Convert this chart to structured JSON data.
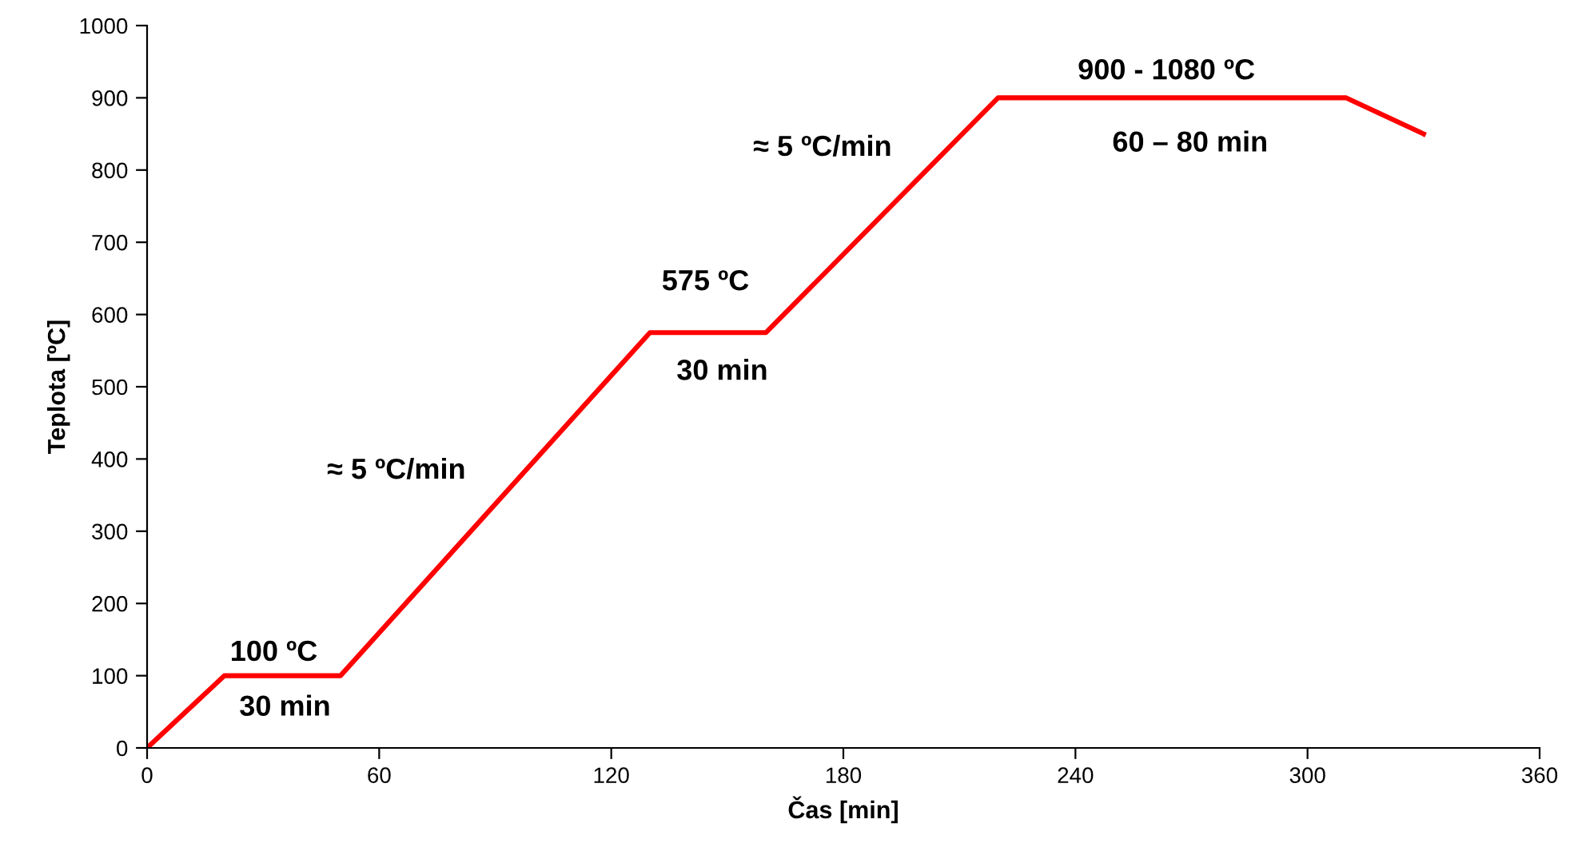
{
  "chart_data": {
    "type": "line",
    "xlabel": "Čas [min]",
    "ylabel": "Teplota [ºC]",
    "x": [
      0,
      20,
      50,
      130,
      160,
      220,
      310,
      330
    ],
    "series": [
      {
        "color": "#ff0000",
        "values": [
          0,
          100,
          100,
          575,
          575,
          900,
          900,
          850
        ]
      }
    ],
    "xlim": [
      0,
      360
    ],
    "xticks": [
      0,
      60,
      120,
      180,
      240,
      300,
      360
    ],
    "ylim": [
      0,
      1000
    ],
    "yticks": [
      0,
      100,
      200,
      300,
      400,
      500,
      600,
      700,
      800,
      900,
      1000
    ],
    "grid": false,
    "marker": "none",
    "line_style": "solid",
    "annotations": [
      "100 ºC",
      "30 min",
      "≈ 5 ºC/min",
      "575 ºC",
      "30 min",
      "≈ 5 ºC/min",
      "900 - 1080 ºC",
      "60 – 80 min"
    ]
  }
}
